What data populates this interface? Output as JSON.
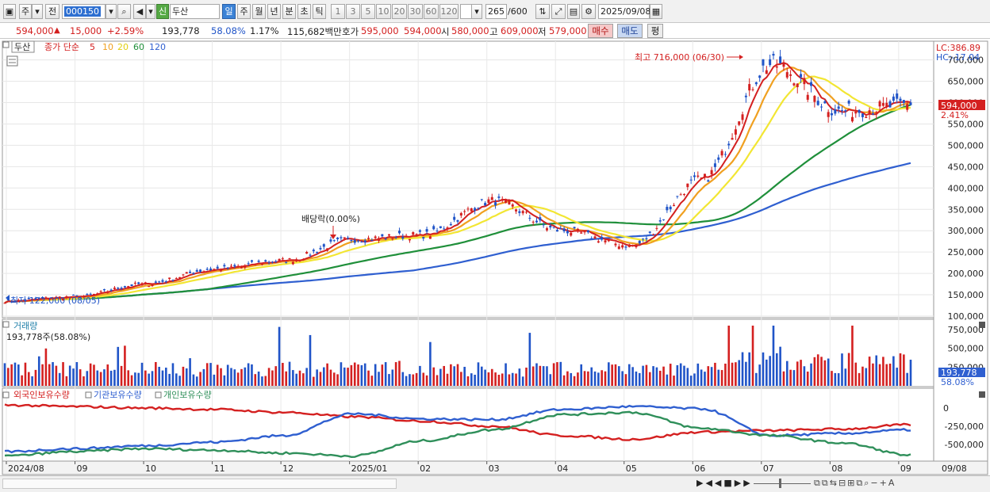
{
  "toolbar": {
    "period_label": "주",
    "prev_label": "전",
    "code_value": "000150",
    "new_label": "신",
    "stock_name": "두산",
    "period_tabs": [
      "일",
      "주",
      "월",
      "년",
      "분",
      "초",
      "틱"
    ],
    "active_tab": "일",
    "interval_options": [
      "1",
      "3",
      "5",
      "10",
      "20",
      "30",
      "60",
      "120"
    ],
    "count_value": "265",
    "count_total": "/600",
    "date_value": "2025/09/08"
  },
  "quote": {
    "price": "594,000",
    "change_arrow": "▲",
    "change": "15,000",
    "change_pct": "+2.59%",
    "volume": "193,778",
    "volume_pct": "58.08%",
    "turnover_pct": "1.17%",
    "amount": "115,682백만",
    "ask_label": "호가",
    "ask": "595,000",
    "bid": "594,000",
    "open_label": "시",
    "open": "580,000",
    "high_label": "고",
    "high": "609,000",
    "low_label": "저",
    "low": "579,000",
    "buy_label": "매수",
    "sell_label": "매도",
    "eval_label": "평"
  },
  "price_panel": {
    "name_tag": "두산",
    "legend_prefix": "종가 단순",
    "ma_periods": [
      "5",
      "10",
      "20",
      "60",
      "120"
    ],
    "ma_colors": [
      "#d42020",
      "#f0a020",
      "#f2e633",
      "#1f8f3a",
      "#2f5fd0"
    ],
    "lc_label": "LC:386.89",
    "hc_label": "HC:-17.04",
    "current_price": "594,000",
    "current_pct": "2.41%",
    "high_annotation": "최고 716,000 (06/30)",
    "low_annotation": "최저 122,000 (08/05)",
    "dividend_annotation": "배당락(0.00%)",
    "y_ticks": [
      "700,000",
      "650,000",
      "600,000",
      "550,000",
      "500,000",
      "450,000",
      "400,000",
      "350,000",
      "300,000",
      "250,000",
      "200,000",
      "150,000",
      "100,000"
    ],
    "y_tick_values": [
      700000,
      650000,
      600000,
      550000,
      500000,
      450000,
      400000,
      350000,
      300000,
      250000,
      200000,
      150000,
      100000
    ]
  },
  "volume_panel": {
    "title": "거래량",
    "summary": "193,778주(58.08%)",
    "current": "193,778",
    "current_pct": "58.08%",
    "y_ticks": [
      "750,000",
      "500,000",
      "250,000"
    ],
    "y_tick_values": [
      750000,
      500000,
      250000
    ]
  },
  "holdings_panel": {
    "legend": [
      "외국인보유수량",
      "기관보유수량",
      "개인보유수량"
    ],
    "colors": [
      "#d42020",
      "#2f5fd0",
      "#2f8f5a"
    ],
    "y_ticks": [
      "0",
      "-250,000",
      "-500,000"
    ],
    "y_tick_values": [
      0,
      -250000,
      -500000
    ]
  },
  "x_axis": {
    "labels": [
      "2024/08",
      "09",
      "10",
      "11",
      "12",
      "2025/01",
      "02",
      "03",
      "04",
      "05",
      "06",
      "07",
      "08",
      "09"
    ],
    "right_label": "09/08"
  },
  "chart_data": {
    "type": "line",
    "title": "",
    "price_series": {
      "name": "두산",
      "x": [
        "2024/08",
        "2024/09",
        "2024/10",
        "2024/11",
        "2024/12",
        "2025/01",
        "2025/02",
        "2025/03",
        "2025/04",
        "2025/05",
        "2025/06",
        "2025/07",
        "2025/08",
        "2025/09/08"
      ],
      "close": [
        135000,
        145000,
        175000,
        210000,
        230000,
        280000,
        290000,
        370000,
        300000,
        265000,
        420000,
        690000,
        580000,
        594000
      ]
    },
    "ylim": [
      100000,
      716000
    ],
    "high": 716000,
    "low": 122000,
    "volume_ylim": [
      0,
      800000
    ]
  }
}
